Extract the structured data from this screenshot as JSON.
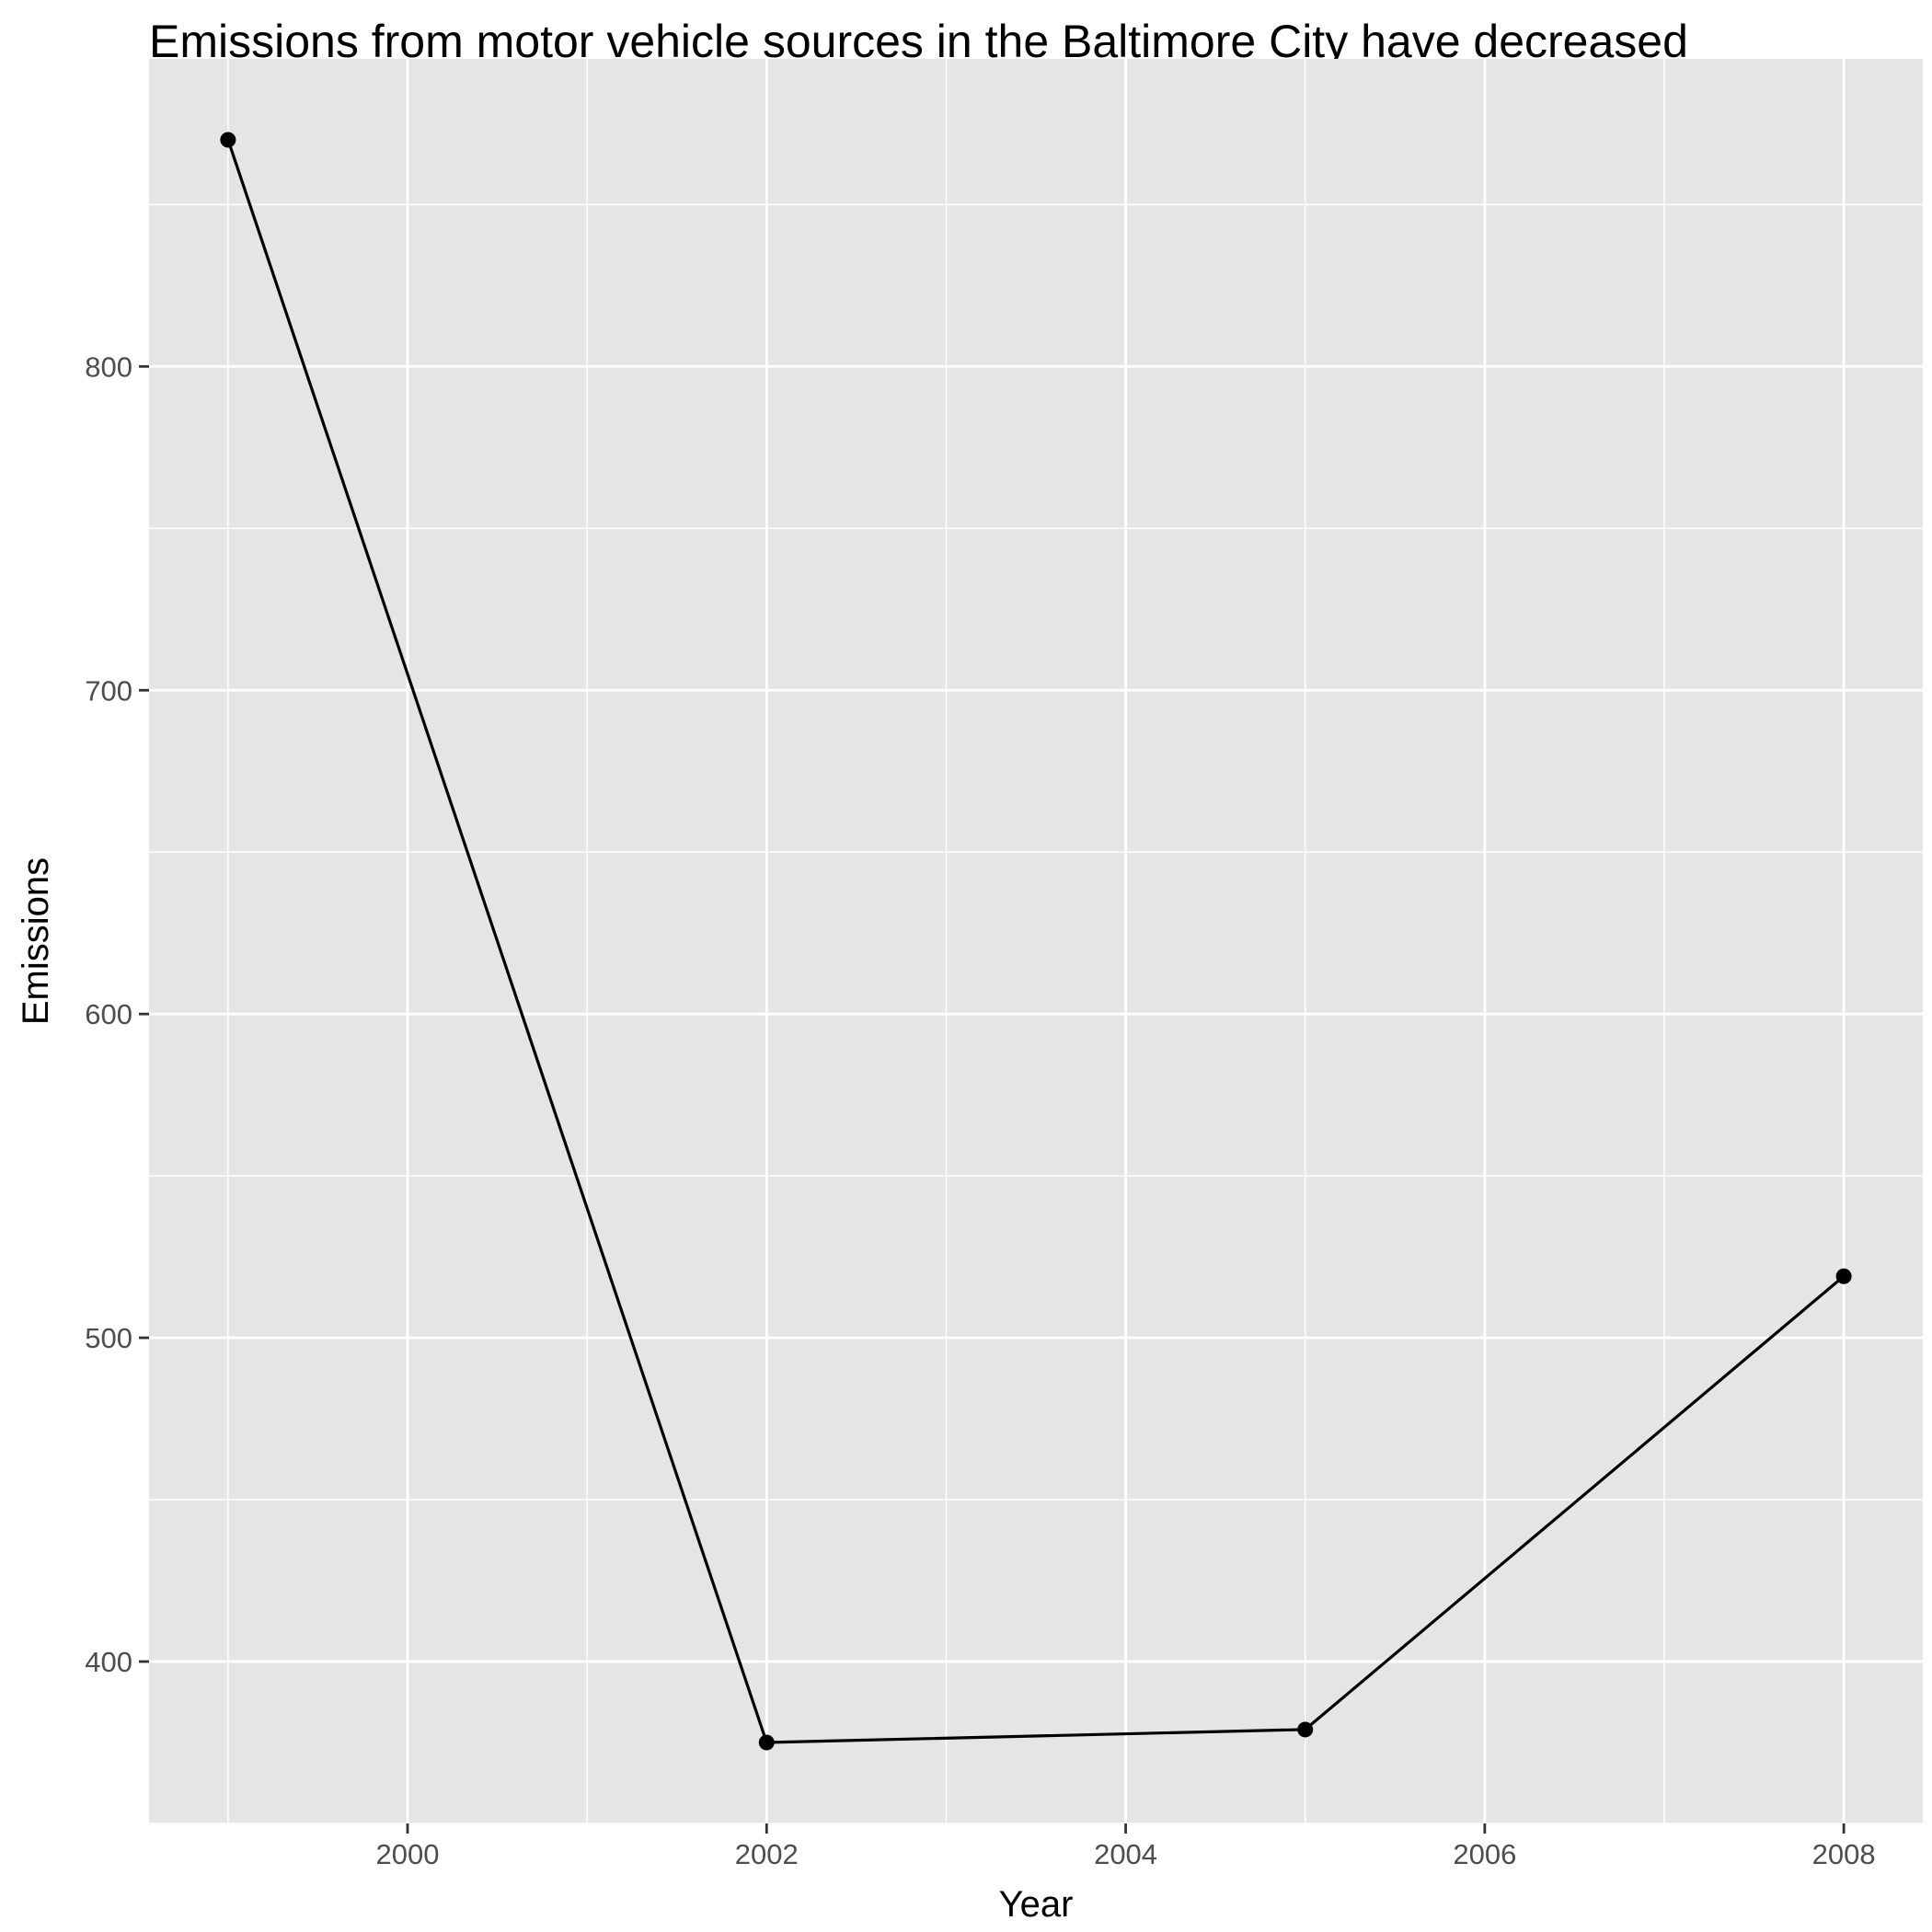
{
  "chart_data": {
    "type": "line",
    "title": "Emissions from motor vehicle sources in the Baltimore City have decreased",
    "xlabel": "Year",
    "ylabel": "Emissions",
    "x": [
      1999,
      2002,
      2005,
      2008
    ],
    "series": [
      {
        "values": [
          870,
          375,
          379,
          519
        ]
      }
    ],
    "xlim": [
      1998.56,
      2008.44
    ],
    "ylim": [
      350,
      895
    ],
    "x_ticks": [
      2000,
      2002,
      2004,
      2006,
      2008
    ],
    "y_ticks": [
      400,
      500,
      600,
      700,
      800
    ],
    "grid": true,
    "legend": "none",
    "colors": {
      "panel_background": "#e5e5e5",
      "grid": "#ffffff",
      "line": "#000000",
      "point": "#000000"
    }
  }
}
